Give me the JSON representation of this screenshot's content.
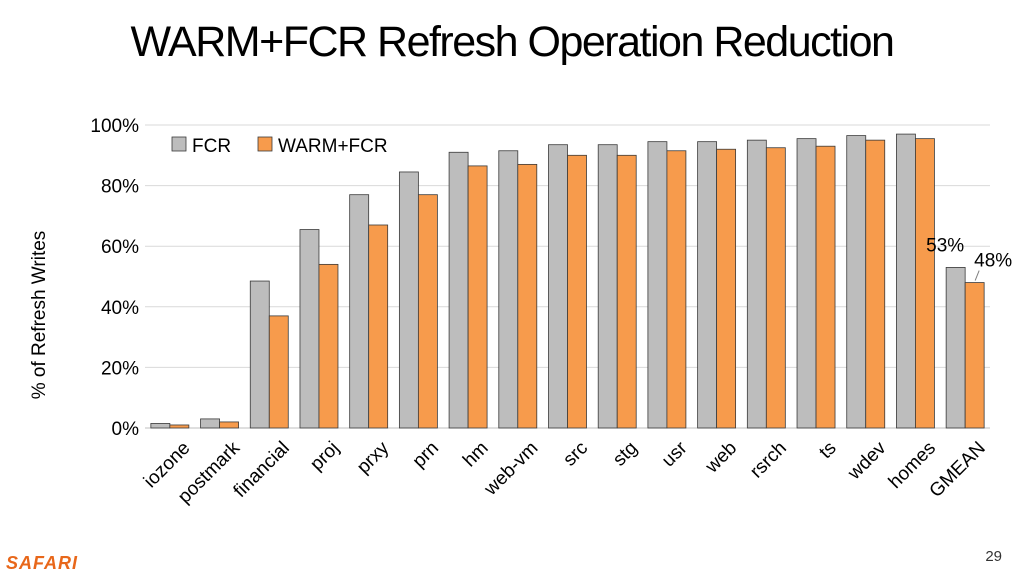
{
  "slide": {
    "title": "WARM+FCR Refresh Operation Reduction",
    "logo": "SAFARI",
    "page_number": "29"
  },
  "colors": {
    "fcr": "#bdbdbd",
    "warm_fcr": "#f79b4c",
    "bar_stroke": "#3a3a3a",
    "grid": "#d9d9d9",
    "logo": "#e8671a"
  },
  "chart_data": {
    "type": "bar",
    "title": "",
    "xlabel": "",
    "ylabel": "% of Refresh Writes",
    "ylim": [
      0,
      100
    ],
    "yticks": [
      "0%",
      "20%",
      "40%",
      "60%",
      "80%",
      "100%"
    ],
    "grid": true,
    "legend_position": "top-left",
    "categories": [
      "iozone",
      "postmark",
      "financial",
      "proj",
      "prxy",
      "prn",
      "hm",
      "web-vm",
      "src",
      "stg",
      "usr",
      "web",
      "rsrch",
      "ts",
      "wdev",
      "homes",
      "GMEAN"
    ],
    "series": [
      {
        "name": "FCR",
        "values": [
          1.5,
          3,
          48.5,
          65.5,
          77,
          84.5,
          91,
          91.5,
          93.5,
          93.5,
          94.5,
          94.5,
          95,
          95.5,
          96.5,
          97,
          53
        ]
      },
      {
        "name": "WARM+FCR",
        "values": [
          1,
          2,
          37,
          54,
          67,
          77,
          86.5,
          87,
          90,
          90,
          91.5,
          92,
          92.5,
          93,
          95,
          95.5,
          48
        ]
      }
    ],
    "annotations": [
      "53%",
      "48%"
    ]
  }
}
